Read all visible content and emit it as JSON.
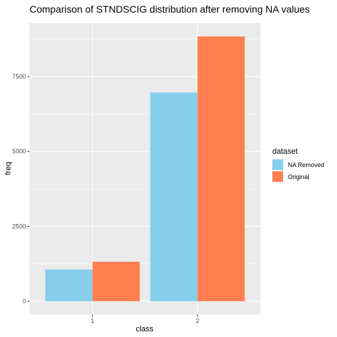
{
  "chart_data": {
    "type": "bar",
    "title": "Comparison of STNDSCIG distribution after removing NA values",
    "xlabel": "class",
    "ylabel": "freq",
    "categories": [
      "1",
      "2"
    ],
    "series": [
      {
        "name": "NA Removed",
        "color": "#87CEEB",
        "values": [
          1060,
          6970
        ]
      },
      {
        "name": "Original",
        "color": "#FF7F50",
        "values": [
          1320,
          8840
        ]
      }
    ],
    "y_ticks": [
      0,
      2500,
      5000,
      7500
    ],
    "y_tick_labels": [
      "0",
      "2500",
      "5000",
      "7500"
    ],
    "ylim": [
      -442,
      9282
    ],
    "legend": {
      "title": "dataset",
      "position": "right"
    },
    "grid": true,
    "panel_background": "#EBEBEB",
    "grid_color": "#FFFFFF"
  }
}
